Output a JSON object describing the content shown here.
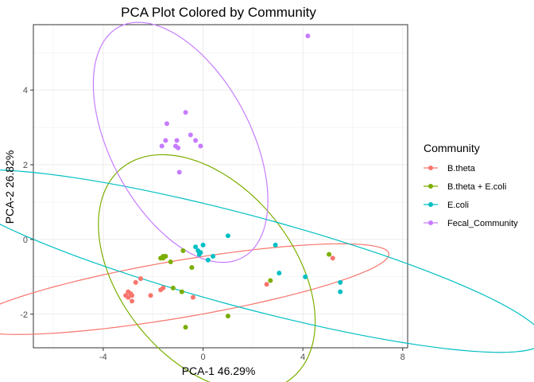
{
  "chart_data": {
    "type": "scatter",
    "title": "PCA Plot Colored by Community",
    "xlabel": "PCA-1 46.29%",
    "ylabel": "PCA-2 26.82%",
    "xlim": [
      -6.8,
      8.2
    ],
    "ylim": [
      -2.9,
      5.75
    ],
    "x_ticks": [
      -4,
      0,
      4,
      8
    ],
    "y_ticks": [
      -2,
      0,
      2,
      4
    ],
    "x_tick_labels": [
      "-4",
      "0",
      "4",
      "8"
    ],
    "y_tick_labels": [
      "-2",
      "0",
      "2",
      "4"
    ],
    "grid": true,
    "legend_position": "right",
    "legend_title": "Community",
    "series": [
      {
        "name": "B.theta",
        "color": "#F8766D",
        "points": [
          [
            -2.5,
            -1.05
          ],
          [
            -2.7,
            -1.15
          ],
          [
            -3.0,
            -1.4
          ],
          [
            -2.9,
            -1.45
          ],
          [
            -3.1,
            -1.5
          ],
          [
            -3.0,
            -1.55
          ],
          [
            -2.85,
            -1.5
          ],
          [
            -2.85,
            -1.65
          ],
          [
            -2.1,
            -1.5
          ],
          [
            -1.7,
            -1.35
          ],
          [
            -1.6,
            -1.3
          ],
          [
            -0.4,
            -1.55
          ],
          [
            2.55,
            -1.2
          ],
          [
            5.2,
            -0.5
          ]
        ],
        "ellipse": {
          "cx": -0.95,
          "cy": -1.33,
          "a": 8.45,
          "b": 0.77,
          "angle_deg": 6.4
        }
      },
      {
        "name": "B.theta + E.coli",
        "color": "#7CAE00",
        "points": [
          [
            -1.6,
            -0.45
          ],
          [
            -1.6,
            -0.5
          ],
          [
            -1.7,
            -0.5
          ],
          [
            -1.5,
            -0.45
          ],
          [
            -1.3,
            -0.6
          ],
          [
            -1.2,
            -1.3
          ],
          [
            -0.8,
            -0.3
          ],
          [
            -0.45,
            -0.75
          ],
          [
            -0.85,
            -1.4
          ],
          [
            -0.7,
            -2.35
          ],
          [
            1.0,
            -2.05
          ],
          [
            2.7,
            -1.1
          ],
          [
            5.05,
            -0.4
          ]
        ],
        "ellipse": {
          "cx": 0.15,
          "cy": -0.9,
          "a": 4.65,
          "b": 2.7,
          "angle_deg": -26
        }
      },
      {
        "name": "E.coli",
        "color": "#00BFC4",
        "points": [
          [
            -0.3,
            -0.2
          ],
          [
            -0.2,
            -0.3
          ],
          [
            -0.1,
            -0.35
          ],
          [
            0.0,
            -0.15
          ],
          [
            -0.15,
            -0.4
          ],
          [
            0.4,
            -0.45
          ],
          [
            0.2,
            -0.55
          ],
          [
            1.0,
            0.1
          ],
          [
            2.9,
            -0.15
          ],
          [
            3.05,
            -0.9
          ],
          [
            4.1,
            -1.0
          ],
          [
            5.5,
            -1.15
          ],
          [
            5.5,
            -1.4
          ]
        ],
        "ellipse": {
          "cx": 1.68,
          "cy": -0.58,
          "a": 12.15,
          "b": 1.25,
          "angle_deg": -10
        }
      },
      {
        "name": "Fecal_Community",
        "color": "#C77CFF",
        "points": [
          [
            -1.45,
            3.1
          ],
          [
            -0.7,
            3.4
          ],
          [
            -1.5,
            2.65
          ],
          [
            -1.65,
            2.5
          ],
          [
            -1.05,
            2.65
          ],
          [
            -1.1,
            2.5
          ],
          [
            -1.0,
            2.45
          ],
          [
            -0.5,
            2.8
          ],
          [
            -0.3,
            2.65
          ],
          [
            -0.1,
            2.5
          ],
          [
            -0.95,
            1.8
          ],
          [
            4.2,
            5.45
          ]
        ],
        "ellipse": {
          "cx": -0.9,
          "cy": 2.6,
          "a": 4.1,
          "b": 2.4,
          "angle_deg": -40
        }
      }
    ]
  }
}
